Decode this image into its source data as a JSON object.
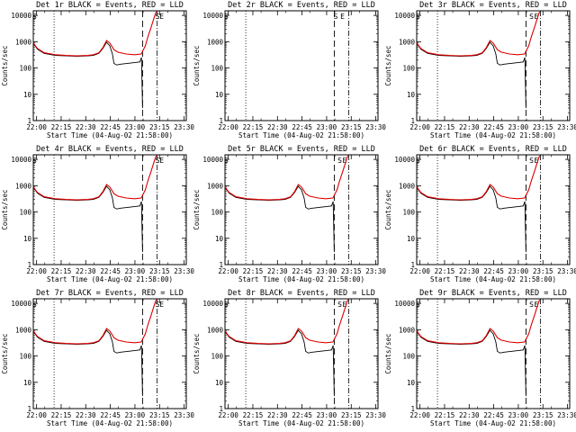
{
  "figure": {
    "background": "#ffffff",
    "ink": "#000000",
    "lld_color": "#dd0000"
  },
  "chart_data": {
    "type": "line",
    "y_scale": "log",
    "ylim": [
      1,
      15000
    ],
    "x_range_seconds": [
      0,
      5600
    ],
    "ylabel": "Counts/sec",
    "xlabel": "Start Time (04-Aug-02 21:58:00)",
    "x_ticks": [
      {
        "t": 120,
        "label": "22:00"
      },
      {
        "t": 1020,
        "label": "22:15"
      },
      {
        "t": 1920,
        "label": "22:30"
      },
      {
        "t": 2820,
        "label": "22:45"
      },
      {
        "t": 3720,
        "label": "23:00"
      },
      {
        "t": 4620,
        "label": "23:15"
      },
      {
        "t": 5520,
        "label": "23:30"
      }
    ],
    "y_ticks": [
      {
        "v": 1,
        "label": "1"
      },
      {
        "v": 10,
        "label": "10"
      },
      {
        "v": 100,
        "label": "100"
      },
      {
        "v": 1000,
        "label": "1000"
      },
      {
        "v": 10000,
        "label": "10000"
      }
    ],
    "legend": {
      "black": "Events",
      "red": "LLD"
    },
    "lld_series": {
      "t": [
        0,
        150,
        400,
        800,
        1200,
        1600,
        2000,
        2200,
        2400,
        2550,
        2680,
        2800,
        2950,
        3100,
        3400,
        3700,
        3950,
        4100,
        4200,
        4300,
        4380,
        4450,
        4500
      ],
      "v": [
        900,
        550,
        380,
        320,
        300,
        290,
        300,
        320,
        380,
        600,
        1100,
        900,
        500,
        400,
        340,
        320,
        340,
        700,
        1600,
        3200,
        6000,
        10000,
        14000
      ]
    },
    "events_series": {
      "t": [
        0,
        150,
        400,
        800,
        1200,
        1600,
        2000,
        2200,
        2400,
        2550,
        2680,
        2800,
        2900,
        2950,
        3050,
        3200,
        3450,
        3700,
        3900,
        3960,
        4000
      ],
      "v": [
        880,
        520,
        360,
        300,
        290,
        280,
        290,
        300,
        360,
        560,
        950,
        700,
        330,
        150,
        130,
        140,
        150,
        160,
        170,
        250,
        3
      ]
    },
    "panels": [
      {
        "title": "Det 1r BLACK = Events, RED = LLD",
        "dotted": [
          760
        ],
        "dashed": [
          4000
        ],
        "dash_dot": [
          4530
        ],
        "markers": [
          {
            "t": 45,
            "c": "S"
          },
          {
            "t": 4550,
            "c": "S"
          },
          {
            "t": 4700,
            "c": "E"
          }
        ],
        "has_data": true
      },
      {
        "title": "Det 2r BLACK = Events, RED = LLD",
        "dotted": [
          760
        ],
        "dashed": [
          4000
        ],
        "dash_dot": [
          4530
        ],
        "markers": [
          {
            "t": 45,
            "c": "S"
          },
          {
            "t": 4050,
            "c": "S"
          },
          {
            "t": 4300,
            "c": "E"
          }
        ],
        "has_data": false
      },
      {
        "title": "Det 3r BLACK = Events, RED = LLD",
        "dotted": [
          760
        ],
        "dashed": [
          4000
        ],
        "dash_dot": [
          4530
        ],
        "markers": [
          {
            "t": 45,
            "c": "S"
          },
          {
            "t": 4200,
            "c": "S"
          },
          {
            "t": 4380,
            "c": "E"
          }
        ],
        "has_data": true
      },
      {
        "title": "Det 4r BLACK = Events, RED = LLD",
        "dotted": [
          760
        ],
        "dashed": [
          4000
        ],
        "dash_dot": [
          4530
        ],
        "markers": [
          {
            "t": 45,
            "c": "S"
          },
          {
            "t": 4550,
            "c": "S"
          },
          {
            "t": 4700,
            "c": "E"
          }
        ],
        "has_data": true
      },
      {
        "title": "Det 5r BLACK = Events, RED = LLD",
        "dotted": [
          760
        ],
        "dashed": [
          4000
        ],
        "dash_dot": [
          4530
        ],
        "markers": [
          {
            "t": 45,
            "c": "S"
          },
          {
            "t": 4200,
            "c": "S"
          },
          {
            "t": 4380,
            "c": "E"
          }
        ],
        "has_data": true
      },
      {
        "title": "Det 6r BLACK = Events, RED = LLD",
        "dotted": [
          760
        ],
        "dashed": [
          4000
        ],
        "dash_dot": [
          4530
        ],
        "markers": [
          {
            "t": 45,
            "c": "S"
          },
          {
            "t": 4200,
            "c": "S"
          },
          {
            "t": 4380,
            "c": "E"
          }
        ],
        "has_data": true
      },
      {
        "title": "Det 7r BLACK = Events, RED = LLD",
        "dotted": [
          760
        ],
        "dashed": [
          4000
        ],
        "dash_dot": [
          4530
        ],
        "markers": [
          {
            "t": 45,
            "c": "S"
          },
          {
            "t": 4550,
            "c": "S"
          },
          {
            "t": 4700,
            "c": "E"
          }
        ],
        "has_data": true
      },
      {
        "title": "Det 8r BLACK = Events, RED = LLD",
        "dotted": [
          760
        ],
        "dashed": [
          4000
        ],
        "dash_dot": [
          4530
        ],
        "markers": [
          {
            "t": 45,
            "c": "S"
          },
          {
            "t": 4200,
            "c": "S"
          },
          {
            "t": 4380,
            "c": "E"
          }
        ],
        "has_data": true
      },
      {
        "title": "Det 9r BLACK = Events, RED = LLD",
        "dotted": [
          760
        ],
        "dashed": [
          4000
        ],
        "dash_dot": [
          4530
        ],
        "markers": [
          {
            "t": 45,
            "c": "S"
          },
          {
            "t": 4200,
            "c": "S"
          },
          {
            "t": 4380,
            "c": "E"
          }
        ],
        "has_data": true
      }
    ]
  }
}
